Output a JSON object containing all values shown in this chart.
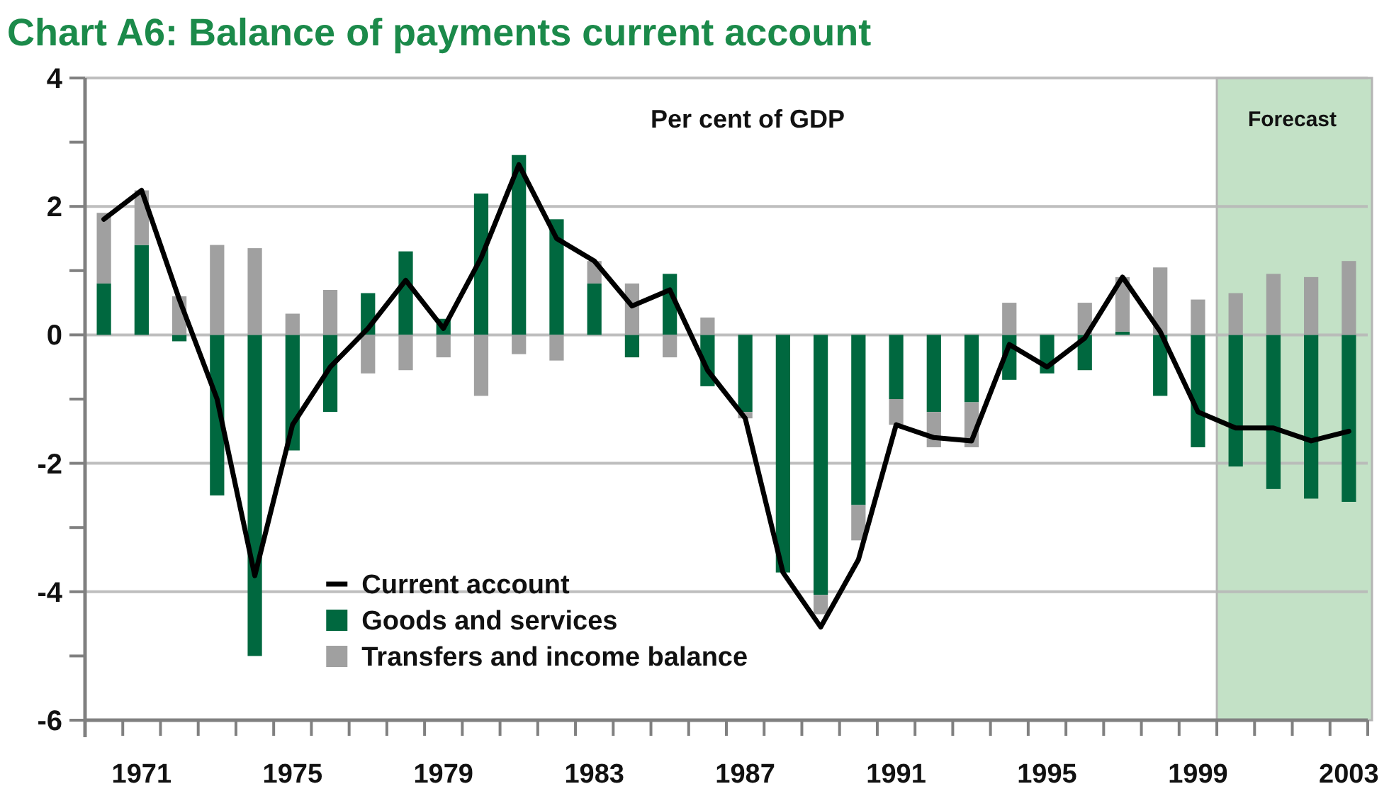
{
  "chart_data": {
    "type": "bar",
    "title": "Chart A6: Balance of payments current account",
    "subtitle": "Per cent of GDP",
    "x": [
      1970,
      1971,
      1972,
      1973,
      1974,
      1975,
      1976,
      1977,
      1978,
      1979,
      1980,
      1981,
      1982,
      1983,
      1984,
      1985,
      1986,
      1987,
      1988,
      1989,
      1990,
      1991,
      1992,
      1993,
      1994,
      1995,
      1996,
      1997,
      1998,
      1999,
      2000,
      2001,
      2002,
      2003
    ],
    "series": [
      {
        "name": "Current account",
        "type": "line",
        "color": "#000000",
        "values": [
          1.8,
          2.25,
          0.55,
          -1.0,
          -3.75,
          -1.4,
          -0.5,
          0.1,
          0.85,
          0.1,
          1.2,
          2.65,
          1.5,
          1.15,
          0.45,
          0.7,
          -0.55,
          -1.3,
          -3.7,
          -4.55,
          -3.5,
          -1.4,
          -1.6,
          -1.65,
          -0.15,
          -0.5,
          -0.05,
          0.9,
          0.05,
          -1.2,
          -1.45,
          -1.45,
          -1.65,
          -1.5
        ]
      },
      {
        "name": "Goods and services",
        "color": "#00683f",
        "values": [
          0.8,
          1.4,
          -0.1,
          -2.5,
          -5.0,
          -1.8,
          -1.2,
          0.65,
          1.3,
          0.25,
          2.2,
          2.8,
          1.8,
          0.8,
          -0.35,
          0.95,
          -0.8,
          -1.2,
          -3.7,
          -4.05,
          -2.65,
          -1.0,
          -1.2,
          -1.05,
          -0.7,
          -0.6,
          -0.55,
          0.05,
          -0.95,
          -1.75,
          -2.05,
          -2.4,
          -2.55,
          -2.6
        ]
      },
      {
        "name": "Transfers and income balance",
        "color": "#a0a0a0",
        "values": [
          1.1,
          0.85,
          0.6,
          1.4,
          1.35,
          0.33,
          0.7,
          -0.6,
          -0.55,
          -0.35,
          -0.95,
          -0.3,
          -0.4,
          0.35,
          0.8,
          -0.35,
          0.27,
          -0.1,
          null,
          -0.3,
          -0.55,
          -0.4,
          -0.55,
          -0.7,
          0.5,
          null,
          0.5,
          0.85,
          1.05,
          0.55,
          0.65,
          0.95,
          0.9,
          1.15
        ]
      }
    ],
    "stacked": true,
    "xlim": [
      1969.5,
      2003.5
    ],
    "xticks": [
      {
        "value": 1969.5,
        "label": null
      },
      {
        "value": 1970.5,
        "label": null
      },
      {
        "value": 1971.5,
        "label": null
      },
      {
        "value": 1972.5,
        "label": null
      },
      {
        "value": 1973.5,
        "label": null
      },
      {
        "value": 1974.5,
        "label": null
      },
      {
        "value": 1975.5,
        "label": null
      },
      {
        "value": 1976.5,
        "label": null
      },
      {
        "value": 1977.5,
        "label": null
      },
      {
        "value": 1978.5,
        "label": null
      },
      {
        "value": 1979.5,
        "label": null
      },
      {
        "value": 1980.5,
        "label": null
      },
      {
        "value": 1981.5,
        "label": null
      },
      {
        "value": 1982.5,
        "label": null
      },
      {
        "value": 1983.5,
        "label": null
      },
      {
        "value": 1984.5,
        "label": null
      },
      {
        "value": 1985.5,
        "label": null
      },
      {
        "value": 1986.5,
        "label": null
      },
      {
        "value": 1987.5,
        "label": null
      },
      {
        "value": 1988.5,
        "label": null
      },
      {
        "value": 1989.5,
        "label": null
      },
      {
        "value": 1990.5,
        "label": null
      },
      {
        "value": 1991.5,
        "label": null
      },
      {
        "value": 1992.5,
        "label": null
      },
      {
        "value": 1993.5,
        "label": null
      },
      {
        "value": 1994.5,
        "label": null
      },
      {
        "value": 1995.5,
        "label": null
      },
      {
        "value": 1996.5,
        "label": null
      },
      {
        "value": 1997.5,
        "label": null
      },
      {
        "value": 1998.5,
        "label": null
      },
      {
        "value": 1999.5,
        "label": null
      },
      {
        "value": 2000.5,
        "label": null
      },
      {
        "value": 2001.5,
        "label": null
      },
      {
        "value": 2002.5,
        "label": null
      },
      {
        "value": 2003.5,
        "label": null
      },
      1971,
      1975,
      1979,
      1983,
      1987,
      1991,
      1995,
      1999,
      2003
    ],
    "ylim": [
      -6,
      4
    ],
    "yticks": [
      -6,
      {
        "value": -5,
        "label": null
      },
      -4,
      {
        "value": -3,
        "label": null
      },
      -2,
      {
        "value": -1,
        "label": null
      },
      0,
      {
        "value": 1,
        "label": null
      },
      2,
      {
        "value": 3,
        "label": null
      },
      4
    ],
    "grid": "y",
    "bands": [
      {
        "axis": "x",
        "from": 1999.5,
        "to": 2003.5,
        "label": "Forecast",
        "color": "#c3e1c6"
      }
    ],
    "legend": "bottom left"
  }
}
